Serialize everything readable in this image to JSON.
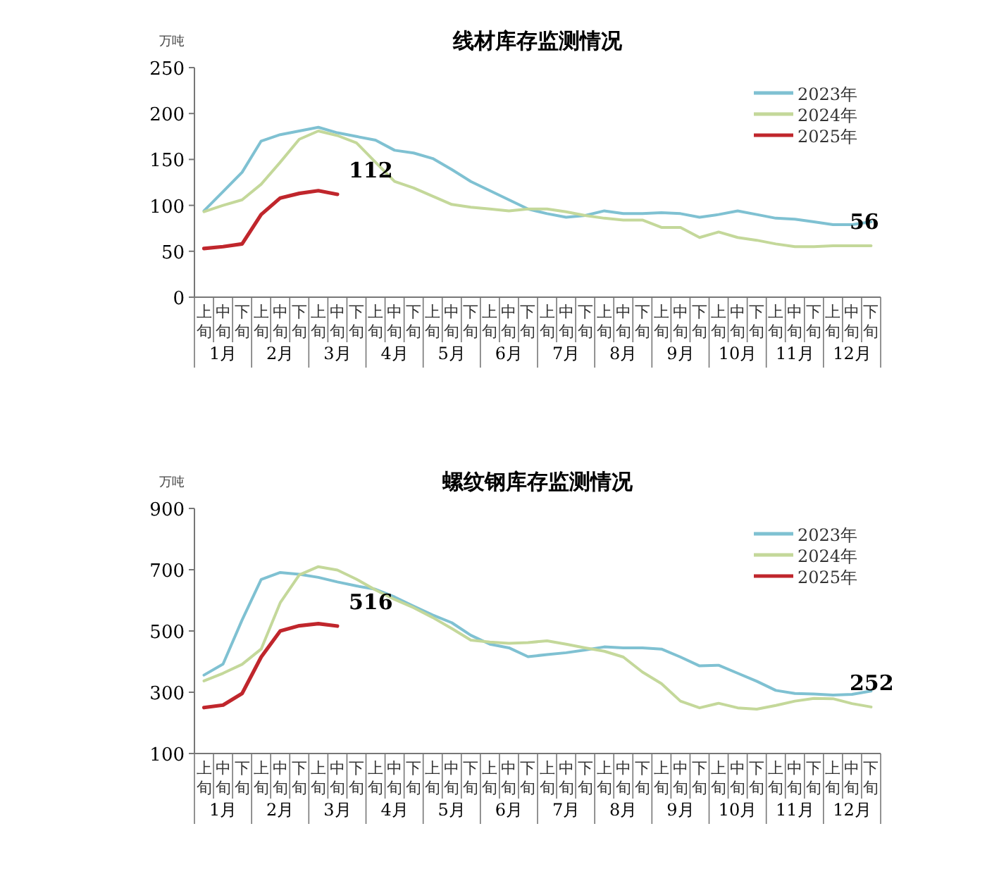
{
  "chart_data": [
    {
      "type": "line",
      "title": "线材库存监测情况",
      "ylabel": "万吨",
      "categories": [
        "上旬",
        "中旬",
        "下旬",
        "上旬",
        "中旬",
        "下旬",
        "上旬",
        "中旬",
        "下旬",
        "上旬",
        "中旬",
        "下旬",
        "上旬",
        "中旬",
        "下旬",
        "上旬",
        "中旬",
        "下旬",
        "上旬",
        "中旬",
        "下旬",
        "上旬",
        "中旬",
        "下旬",
        "上旬",
        "中旬",
        "下旬",
        "上旬",
        "中旬",
        "下旬",
        "上旬",
        "中旬",
        "下旬",
        "上旬",
        "中旬",
        "下旬"
      ],
      "series": [
        {
          "name": "2023年",
          "color": "#7fc1d2",
          "values": [
            94,
            115,
            136,
            170,
            177,
            181,
            185,
            179,
            175,
            171,
            160,
            157,
            151,
            139,
            126,
            116,
            106,
            96,
            91,
            87,
            89,
            94,
            91,
            91,
            92,
            91,
            87,
            90,
            94,
            90,
            86,
            85,
            82,
            79,
            79,
            82
          ]
        },
        {
          "name": "2024年",
          "color": "#c4d89a",
          "values": [
            93,
            100,
            106,
            123,
            147,
            172,
            181,
            176,
            168,
            147,
            126,
            119,
            110,
            101,
            98,
            96,
            94,
            96,
            96,
            93,
            89,
            86,
            84,
            84,
            76,
            76,
            65,
            71,
            65,
            62,
            58,
            55,
            55,
            56,
            56,
            56
          ],
          "value_labels": [
            null,
            null,
            null,
            null,
            null,
            null,
            null,
            null,
            null,
            null,
            null,
            null,
            null,
            null,
            null,
            null,
            null,
            null,
            null,
            null,
            null,
            null,
            null,
            null,
            null,
            null,
            null,
            null,
            null,
            null,
            null,
            null,
            null,
            null,
            null,
            "56"
          ]
        },
        {
          "name": "2025年",
          "color": "#c0262c",
          "values": [
            53,
            55,
            58,
            90,
            108,
            113,
            116,
            112,
            null,
            null,
            null,
            null,
            null,
            null,
            null,
            null,
            null,
            null,
            null,
            null,
            null,
            null,
            null,
            null,
            null,
            null,
            null,
            null,
            null,
            null,
            null,
            null,
            null,
            null,
            null,
            null
          ],
          "value_labels": [
            null,
            null,
            null,
            null,
            null,
            null,
            null,
            "112",
            null,
            null,
            null,
            null,
            null,
            null,
            null,
            null,
            null,
            null,
            null,
            null,
            null,
            null,
            null,
            null,
            null,
            null,
            null,
            null,
            null,
            null,
            null,
            null,
            null,
            null,
            null,
            null
          ]
        }
      ],
      "ylim": [
        0,
        250
      ],
      "yticks": [
        0,
        50,
        100,
        150,
        200,
        250
      ],
      "legend": "top right",
      "grid": false,
      "annotations": [
        "1月",
        "2月",
        "3月",
        "4月",
        "5月",
        "6月",
        "7月",
        "8月",
        "9月",
        "10月",
        "11月",
        "12月"
      ]
    },
    {
      "type": "line",
      "title": "螺纹钢库存监测情况",
      "ylabel": "万吨",
      "categories": [
        "上旬",
        "中旬",
        "下旬",
        "上旬",
        "中旬",
        "下旬",
        "上旬",
        "中旬",
        "下旬",
        "上旬",
        "中旬",
        "下旬",
        "上旬",
        "中旬",
        "下旬",
        "上旬",
        "中旬",
        "下旬",
        "上旬",
        "中旬",
        "下旬",
        "上旬",
        "中旬",
        "下旬",
        "上旬",
        "中旬",
        "下旬",
        "上旬",
        "中旬",
        "下旬",
        "上旬",
        "中旬",
        "下旬",
        "上旬",
        "中旬",
        "下旬"
      ],
      "series": [
        {
          "name": "2023年",
          "color": "#7fc1d2",
          "values": [
            356,
            392,
            536,
            668,
            691,
            685,
            675,
            660,
            647,
            636,
            611,
            581,
            552,
            527,
            486,
            457,
            445,
            416,
            423,
            429,
            438,
            448,
            445,
            445,
            441,
            415,
            386,
            388,
            362,
            336,
            306,
            296,
            294,
            291,
            293,
            304
          ]
        },
        {
          "name": "2024年",
          "color": "#c4d89a",
          "values": [
            337,
            362,
            391,
            441,
            592,
            683,
            710,
            699,
            669,
            634,
            603,
            576,
            544,
            508,
            470,
            464,
            460,
            462,
            468,
            457,
            445,
            434,
            415,
            366,
            328,
            271,
            249,
            264,
            249,
            245,
            257,
            271,
            280,
            279,
            263,
            252
          ],
          "value_labels": [
            null,
            null,
            null,
            null,
            null,
            null,
            null,
            null,
            null,
            null,
            null,
            null,
            null,
            null,
            null,
            null,
            null,
            null,
            null,
            null,
            null,
            null,
            null,
            null,
            null,
            null,
            null,
            null,
            null,
            null,
            null,
            null,
            null,
            null,
            null,
            "252"
          ]
        },
        {
          "name": "2025年",
          "color": "#c0262c",
          "values": [
            250,
            258,
            296,
            415,
            500,
            517,
            524,
            516,
            null,
            null,
            null,
            null,
            null,
            null,
            null,
            null,
            null,
            null,
            null,
            null,
            null,
            null,
            null,
            null,
            null,
            null,
            null,
            null,
            null,
            null,
            null,
            null,
            null,
            null,
            null,
            null
          ],
          "value_labels": [
            null,
            null,
            null,
            null,
            null,
            null,
            null,
            "516",
            null,
            null,
            null,
            null,
            null,
            null,
            null,
            null,
            null,
            null,
            null,
            null,
            null,
            null,
            null,
            null,
            null,
            null,
            null,
            null,
            null,
            null,
            null,
            null,
            null,
            null,
            null,
            null
          ]
        }
      ],
      "ylim": [
        100,
        900
      ],
      "yticks": [
        100,
        300,
        500,
        700,
        900
      ],
      "legend": "top right",
      "grid": false,
      "annotations": [
        "1月",
        "2月",
        "3月",
        "4月",
        "5月",
        "6月",
        "7月",
        "8月",
        "9月",
        "10月",
        "11月",
        "12月"
      ]
    }
  ]
}
